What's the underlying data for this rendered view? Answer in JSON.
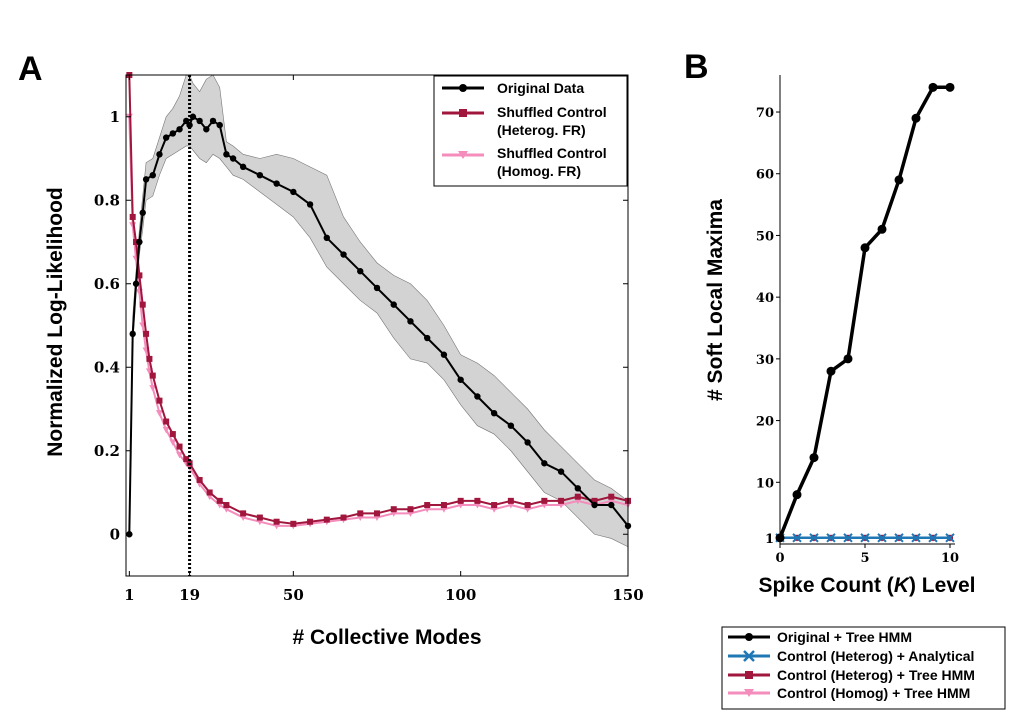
{
  "panels": {
    "a_letter": "A",
    "b_letter": "B"
  },
  "chart_data": [
    {
      "type": "line",
      "panel": "A",
      "xlabel": "# Collective Modes",
      "ylabel": "Normalized Log-Likelihood",
      "xlim": [
        0,
        150
      ],
      "ylim": [
        -0.1,
        1.1
      ],
      "xticks": [
        1,
        19,
        50,
        100,
        150
      ],
      "yticks": [
        0,
        0.2,
        0.4,
        0.6,
        0.8,
        1
      ],
      "ytick_labels": [
        "0",
        "0.2",
        "0.4",
        "0.6",
        "0.8",
        "1"
      ],
      "vline": {
        "x": 19,
        "style": "dotted",
        "color": "#000000"
      },
      "legend": [
        {
          "label": "Original Data",
          "color": "#000000"
        },
        {
          "label": "Shuffled Control (Heterog. FR)",
          "line1": "Shuffled Control",
          "line2": "(Heterog. FR)",
          "color": "#a0163c"
        },
        {
          "label": "Shuffled Control (Homog. FR)",
          "line1": "Shuffled Control",
          "line2": "(Homog. FR)",
          "color": "#f48cbc"
        }
      ],
      "series": [
        {
          "name": "Original Data",
          "color": "#000000",
          "band_color": "#d3d3d3",
          "x": [
            1,
            2,
            3,
            4,
            5,
            6,
            8,
            10,
            12,
            14,
            16,
            18,
            19,
            20,
            22,
            24,
            26,
            28,
            30,
            32,
            35,
            40,
            45,
            50,
            55,
            60,
            65,
            70,
            75,
            80,
            85,
            90,
            95,
            100,
            105,
            110,
            115,
            120,
            125,
            130,
            135,
            140,
            145,
            150
          ],
          "y": [
            0.0,
            0.48,
            0.6,
            0.7,
            0.77,
            0.85,
            0.86,
            0.91,
            0.95,
            0.96,
            0.97,
            0.99,
            0.98,
            1.0,
            0.99,
            0.97,
            0.99,
            0.98,
            0.91,
            0.9,
            0.88,
            0.86,
            0.84,
            0.82,
            0.79,
            0.71,
            0.67,
            0.63,
            0.59,
            0.55,
            0.51,
            0.47,
            0.43,
            0.37,
            0.33,
            0.29,
            0.26,
            0.22,
            0.17,
            0.15,
            0.11,
            0.07,
            0.07,
            0.02
          ],
          "lower": [
            0.0,
            0.45,
            0.57,
            0.67,
            0.73,
            0.8,
            0.81,
            0.86,
            0.9,
            0.91,
            0.92,
            0.93,
            0.93,
            0.92,
            0.9,
            0.89,
            0.91,
            0.9,
            0.88,
            0.86,
            0.85,
            0.82,
            0.79,
            0.76,
            0.71,
            0.64,
            0.6,
            0.56,
            0.53,
            0.47,
            0.42,
            0.41,
            0.37,
            0.31,
            0.26,
            0.24,
            0.2,
            0.15,
            0.1,
            0.08,
            0.04,
            0.0,
            -0.01,
            -0.03
          ],
          "upper": [
            0.0,
            0.52,
            0.63,
            0.73,
            0.81,
            0.89,
            0.9,
            0.95,
            1.0,
            1.02,
            1.05,
            1.1,
            1.1,
            1.08,
            1.06,
            1.09,
            1.1,
            1.07,
            0.94,
            0.93,
            0.91,
            0.9,
            0.91,
            0.9,
            0.88,
            0.86,
            0.76,
            0.7,
            0.65,
            0.62,
            0.6,
            0.56,
            0.5,
            0.43,
            0.41,
            0.38,
            0.34,
            0.3,
            0.25,
            0.21,
            0.17,
            0.13,
            0.11,
            0.08
          ]
        },
        {
          "name": "Shuffled Control (Heterog. FR)",
          "color": "#a0163c",
          "x": [
            1,
            2,
            3,
            4,
            5,
            6,
            7,
            8,
            10,
            12,
            14,
            16,
            18,
            19,
            22,
            25,
            28,
            30,
            35,
            40,
            45,
            50,
            55,
            60,
            65,
            70,
            75,
            80,
            85,
            90,
            95,
            100,
            105,
            110,
            115,
            120,
            125,
            130,
            135,
            140,
            145,
            150
          ],
          "y": [
            1.1,
            0.76,
            0.7,
            0.62,
            0.55,
            0.48,
            0.42,
            0.38,
            0.32,
            0.27,
            0.24,
            0.21,
            0.18,
            0.17,
            0.13,
            0.1,
            0.08,
            0.07,
            0.05,
            0.04,
            0.03,
            0.025,
            0.03,
            0.035,
            0.04,
            0.05,
            0.05,
            0.06,
            0.06,
            0.07,
            0.07,
            0.08,
            0.08,
            0.07,
            0.08,
            0.07,
            0.08,
            0.08,
            0.09,
            0.08,
            0.09,
            0.08
          ]
        },
        {
          "name": "Shuffled Control (Homog. FR)",
          "color": "#f48cbc",
          "x": [
            1,
            2,
            3,
            4,
            5,
            6,
            7,
            8,
            10,
            12,
            14,
            16,
            18,
            19,
            22,
            25,
            28,
            30,
            35,
            40,
            45,
            50,
            55,
            60,
            65,
            70,
            75,
            80,
            85,
            90,
            95,
            100,
            105,
            110,
            115,
            120,
            125,
            130,
            135,
            140,
            145,
            150
          ],
          "y": [
            1.0,
            0.74,
            0.66,
            0.58,
            0.5,
            0.44,
            0.39,
            0.35,
            0.29,
            0.25,
            0.22,
            0.19,
            0.17,
            0.16,
            0.12,
            0.09,
            0.07,
            0.06,
            0.04,
            0.03,
            0.02,
            0.02,
            0.025,
            0.03,
            0.035,
            0.04,
            0.04,
            0.05,
            0.05,
            0.06,
            0.06,
            0.07,
            0.07,
            0.06,
            0.07,
            0.06,
            0.07,
            0.07,
            0.08,
            0.07,
            0.08,
            0.07
          ]
        }
      ]
    },
    {
      "type": "line",
      "panel": "B",
      "xlabel_pre": "Spike Count (",
      "xlabel_italic": "K",
      "xlabel_post": ") Level",
      "ylabel": "# Soft Local Maxima",
      "xlim": [
        0,
        10
      ],
      "ylim": [
        0,
        76
      ],
      "xticks": [
        0,
        5,
        10
      ],
      "yticks": [
        1,
        10,
        20,
        30,
        40,
        50,
        60,
        70
      ],
      "legend": [
        {
          "label": "Original + Tree HMM",
          "color": "#000000",
          "marker": "circle"
        },
        {
          "label": "Control (Heterog) + Analytical",
          "color": "#1f77b4",
          "marker": "x"
        },
        {
          "label": "Control (Heterog) + Tree HMM",
          "color": "#a0163c",
          "marker": "square"
        },
        {
          "label": "Control (Homog) + Tree HMM",
          "color": "#f48cbc",
          "marker": "triangle"
        }
      ],
      "series": [
        {
          "name": "Original + Tree HMM",
          "color": "#000000",
          "x": [
            0,
            1,
            2,
            3,
            4,
            5,
            6,
            7,
            8,
            9,
            10
          ],
          "y": [
            1,
            8,
            14,
            28,
            30,
            48,
            51,
            59,
            69,
            74,
            74
          ]
        },
        {
          "name": "Control (Heterog) + Analytical",
          "color": "#1f77b4",
          "x": [
            0,
            1,
            2,
            3,
            4,
            5,
            6,
            7,
            8,
            9,
            10
          ],
          "y": [
            1,
            1,
            1,
            1,
            1,
            1,
            1,
            1,
            1,
            1,
            1
          ]
        },
        {
          "name": "Control (Heterog) + Tree HMM",
          "color": "#a0163c",
          "x": [
            0,
            1,
            2,
            3,
            4,
            5,
            6,
            7,
            8,
            9,
            10
          ],
          "y": [
            1,
            1,
            1,
            1,
            1,
            1,
            1,
            1,
            1,
            1,
            1
          ]
        },
        {
          "name": "Control (Homog) + Tree HMM",
          "color": "#f48cbc",
          "x": [
            0,
            1,
            2,
            3,
            4,
            5,
            6,
            7,
            8,
            9,
            10
          ],
          "y": [
            1,
            1,
            1,
            1,
            1,
            1,
            1,
            1,
            1,
            1,
            1
          ]
        }
      ]
    }
  ]
}
